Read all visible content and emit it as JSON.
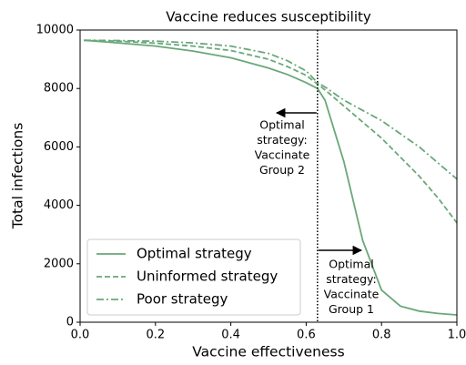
{
  "chart_data": {
    "type": "line",
    "title": "Vaccine reduces susceptibility",
    "x_label": "Vaccine effectiveness",
    "y_label": "Total infections",
    "x": [
      0.01,
      0.1,
      0.2,
      0.3,
      0.4,
      0.5,
      0.55,
      0.6,
      0.63,
      0.65,
      0.7,
      0.75,
      0.8,
      0.85,
      0.9,
      0.95,
      1.0
    ],
    "series": [
      {
        "name": "Optimal strategy",
        "color": "#6aa77a",
        "dash": "solid",
        "values": [
          9650,
          9560,
          9450,
          9280,
          9050,
          8700,
          8480,
          8200,
          8000,
          7600,
          5500,
          2800,
          1100,
          550,
          380,
          300,
          250
        ]
      },
      {
        "name": "Uninformed strategy",
        "color": "#6aa77a",
        "dash": "dashed",
        "values": [
          9650,
          9620,
          9550,
          9450,
          9300,
          9000,
          8750,
          8450,
          8150,
          7950,
          7400,
          6850,
          6300,
          5650,
          5000,
          4250,
          3400
        ]
      },
      {
        "name": "Poor strategy",
        "color": "#6aa77a",
        "dash": "dashdot",
        "values": [
          9650,
          9640,
          9620,
          9560,
          9450,
          9200,
          8950,
          8600,
          8200,
          8050,
          7600,
          7250,
          6900,
          6450,
          6000,
          5450,
          4900
        ]
      }
    ],
    "xlim": [
      0,
      1
    ],
    "ylim": [
      0,
      10000
    ],
    "xticks": [
      {
        "value": 0,
        "label": "0.0"
      },
      0.2,
      0.4,
      0.6,
      0.8,
      {
        "value": 1,
        "label": "1.0"
      }
    ],
    "yticks": [
      0,
      2000,
      4000,
      6000,
      8000,
      10000
    ],
    "vline": 0.63,
    "legend": "lower left",
    "annotations": [
      {
        "lines": [
          "Optimal",
          "strategy:",
          "Vaccinate",
          "Group 2"
        ]
      },
      {
        "lines": [
          "Optimal",
          "strategy:",
          "Vaccinate",
          "Group 1"
        ]
      }
    ]
  }
}
